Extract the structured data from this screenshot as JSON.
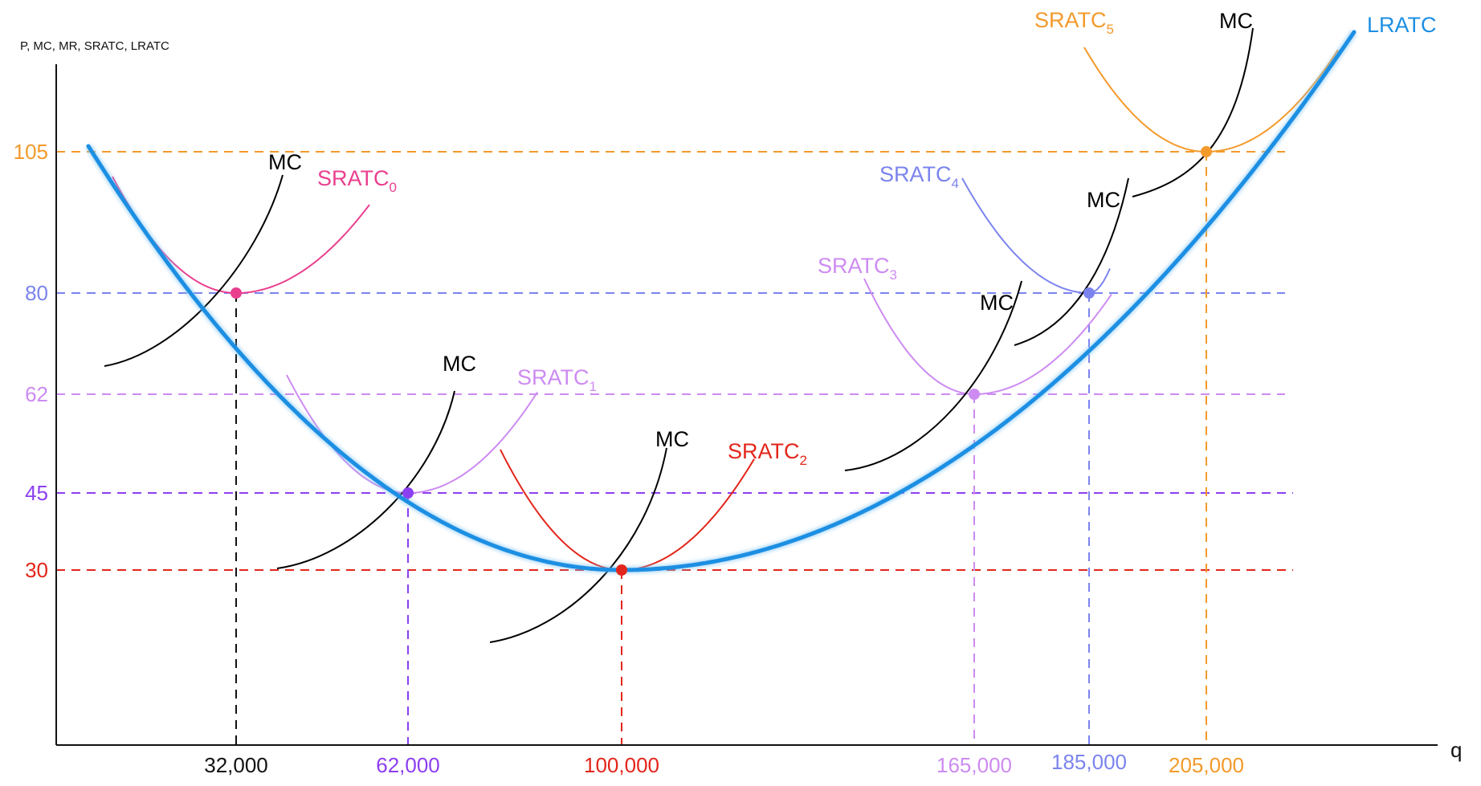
{
  "chart_data": {
    "type": "line",
    "title": "",
    "ylabel": "P, MC, MR, SRATC, LRATC",
    "xlabel": "q",
    "x_unit": "quantity",
    "y_ticks": [
      {
        "value": 105,
        "label": "105",
        "color": "#f39a2b"
      },
      {
        "value": 80,
        "label": "80",
        "color": "#7b84ee"
      },
      {
        "value": 62,
        "label": "62",
        "color": "#cd8bf2"
      },
      {
        "value": 45,
        "label": "45",
        "color": "#8c3ff0"
      },
      {
        "value": 30,
        "label": "30",
        "color": "#e3261b"
      }
    ],
    "x_ticks": [
      {
        "value": 32000,
        "label": "32,000",
        "color": "#111111"
      },
      {
        "value": 62000,
        "label": "62,000",
        "color": "#8c3ff0"
      },
      {
        "value": 100000,
        "label": "100,000",
        "color": "#e3261b"
      },
      {
        "value": 165000,
        "label": "165,000",
        "color": "#cd8bf2"
      },
      {
        "value": 185000,
        "label": "185,000",
        "color": "#7b84ee"
      },
      {
        "value": 205000,
        "label": "205,000",
        "color": "#f39a2b"
      }
    ],
    "lratc": {
      "name": "LRATC",
      "color": "#1c8fe3",
      "min": {
        "x": 100000,
        "y": 30
      }
    },
    "sratc": [
      {
        "name": "SRATC",
        "sub": "0",
        "color": "#ea3f8f",
        "min": {
          "x": 32000,
          "y": 80
        }
      },
      {
        "name": "SRATC",
        "sub": "1",
        "color": "#cd8bf2",
        "min": {
          "x": 62000,
          "y": 45
        }
      },
      {
        "name": "SRATC",
        "sub": "2",
        "color": "#e3261b",
        "min": {
          "x": 100000,
          "y": 30
        }
      },
      {
        "name": "SRATC",
        "sub": "3",
        "color": "#cd8bf2",
        "min": {
          "x": 165000,
          "y": 62
        }
      },
      {
        "name": "SRATC",
        "sub": "4",
        "color": "#7b84ee",
        "min": {
          "x": 185000,
          "y": 80
        }
      },
      {
        "name": "SRATC",
        "sub": "5",
        "color": "#f39a2b",
        "min": {
          "x": 205000,
          "y": 105
        }
      }
    ],
    "mc_label": "MC",
    "mc_color": "#000000",
    "points": [
      {
        "x": 32000,
        "y": 80,
        "color": "#ea3f8f"
      },
      {
        "x": 62000,
        "y": 45,
        "color": "#8c3ff0"
      },
      {
        "x": 100000,
        "y": 30,
        "color": "#e3261b"
      },
      {
        "x": 165000,
        "y": 62,
        "color": "#cd8bf2"
      },
      {
        "x": 185000,
        "y": 80,
        "color": "#7b84ee"
      },
      {
        "x": 205000,
        "y": 105,
        "color": "#f39a2b"
      }
    ]
  }
}
